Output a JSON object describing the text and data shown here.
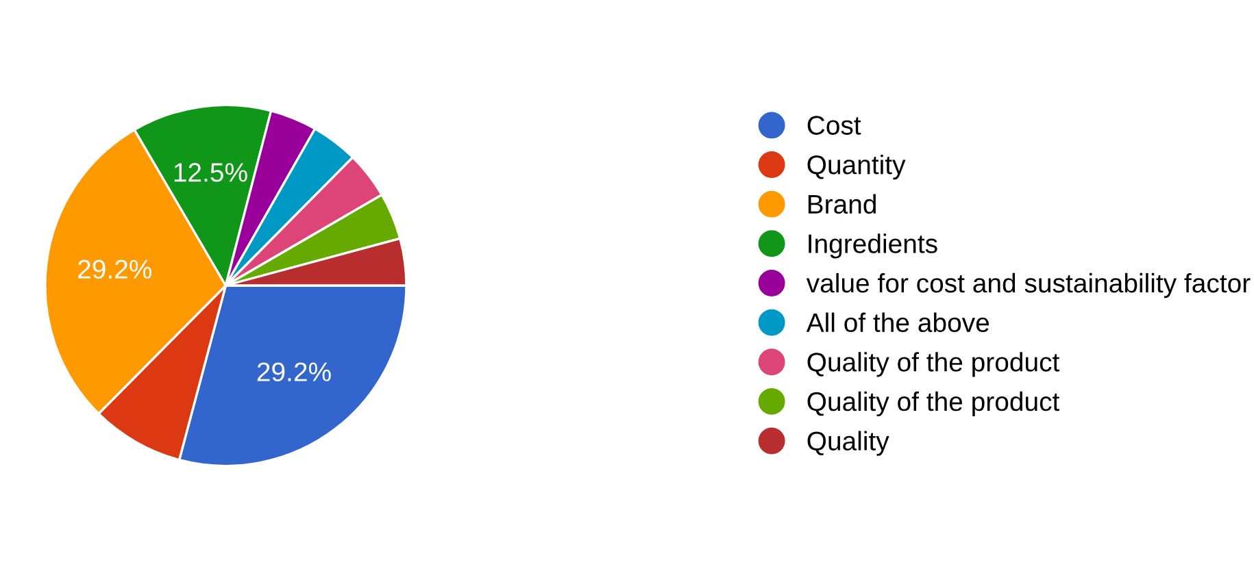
{
  "chart_data": {
    "type": "pie",
    "categories": [
      "Cost",
      "Quantity",
      "Brand",
      "Ingredients",
      "value for cost and sustainability factor",
      "All of the above",
      "Quality of the product",
      "Quality of the product",
      "Quality"
    ],
    "values": [
      29.2,
      8.3,
      29.2,
      12.5,
      4.2,
      4.2,
      4.2,
      4.2,
      4.2
    ],
    "colors": [
      "#3366cc",
      "#dc3912",
      "#ff9900",
      "#109618",
      "#990099",
      "#0099c6",
      "#dd4477",
      "#66aa00",
      "#b82e2e"
    ],
    "value_labels": [
      "29.2%",
      null,
      "29.2%",
      "12.5%",
      null,
      null,
      null,
      null,
      null
    ],
    "legend": "right"
  }
}
